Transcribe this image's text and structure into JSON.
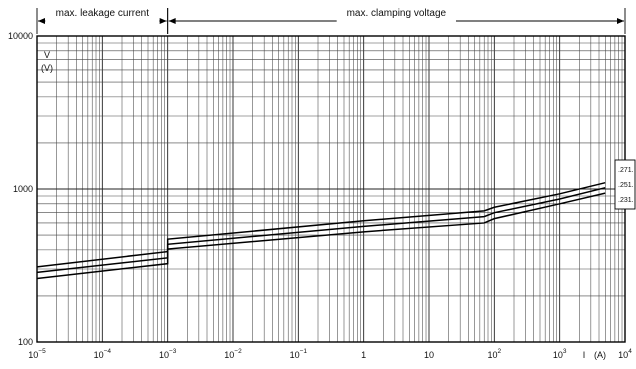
{
  "chart_data": {
    "type": "line",
    "title": "",
    "xscale": "log",
    "yscale": "log",
    "xlim": [
      1e-05,
      10000
    ],
    "ylim": [
      100,
      10000
    ],
    "grid": true,
    "regions": [
      {
        "label": "max. leakage current",
        "x_range": [
          1e-05,
          0.001
        ]
      },
      {
        "label": "max. clamping voltage",
        "x_range": [
          0.001,
          10000
        ]
      }
    ],
    "ylabel": {
      "line1": "V",
      "line2": "(V)"
    },
    "xlabel": {
      "text": "I",
      "unit": "(A)"
    },
    "yticks": [
      {
        "value": 100,
        "label": "100"
      },
      {
        "value": 1000,
        "label": "1000"
      },
      {
        "value": 10000,
        "label": "10000"
      }
    ],
    "xticks": [
      {
        "value": 1e-05,
        "base": "10",
        "exp": "−5"
      },
      {
        "value": 0.0001,
        "base": "10",
        "exp": "−4"
      },
      {
        "value": 0.001,
        "base": "10",
        "exp": "−3"
      },
      {
        "value": 0.01,
        "base": "10",
        "exp": "−2"
      },
      {
        "value": 0.1,
        "base": "10",
        "exp": "−1"
      },
      {
        "value": 1,
        "base": "1",
        "exp": ""
      },
      {
        "value": 10,
        "base": "10",
        "exp": ""
      },
      {
        "value": 100,
        "base": "10",
        "exp": "2"
      },
      {
        "value": 1000,
        "base": "10",
        "exp": "3"
      },
      {
        "value": 10000,
        "base": "10",
        "exp": "4"
      }
    ],
    "legend": {
      "placement": "right",
      "entries": [
        ".271.",
        ".251.",
        ".231."
      ]
    },
    "series": [
      {
        "name": ".271.",
        "points": [
          [
            1e-05,
            310
          ],
          [
            0.001,
            390
          ],
          [
            0.001,
            470
          ],
          [
            1,
            620
          ],
          [
            70,
            720
          ],
          [
            100,
            760
          ],
          [
            1000,
            930
          ],
          [
            5000,
            1100
          ]
        ]
      },
      {
        "name": ".251.",
        "points": [
          [
            1e-05,
            285
          ],
          [
            0.001,
            355
          ],
          [
            0.001,
            435
          ],
          [
            1,
            570
          ],
          [
            70,
            660
          ],
          [
            100,
            700
          ],
          [
            1000,
            860
          ],
          [
            5000,
            1020
          ]
        ]
      },
      {
        "name": ".231.",
        "points": [
          [
            1e-05,
            260
          ],
          [
            0.001,
            325
          ],
          [
            0.001,
            405
          ],
          [
            1,
            525
          ],
          [
            70,
            600
          ],
          [
            100,
            640
          ],
          [
            1000,
            800
          ],
          [
            5000,
            940
          ]
        ]
      }
    ]
  }
}
